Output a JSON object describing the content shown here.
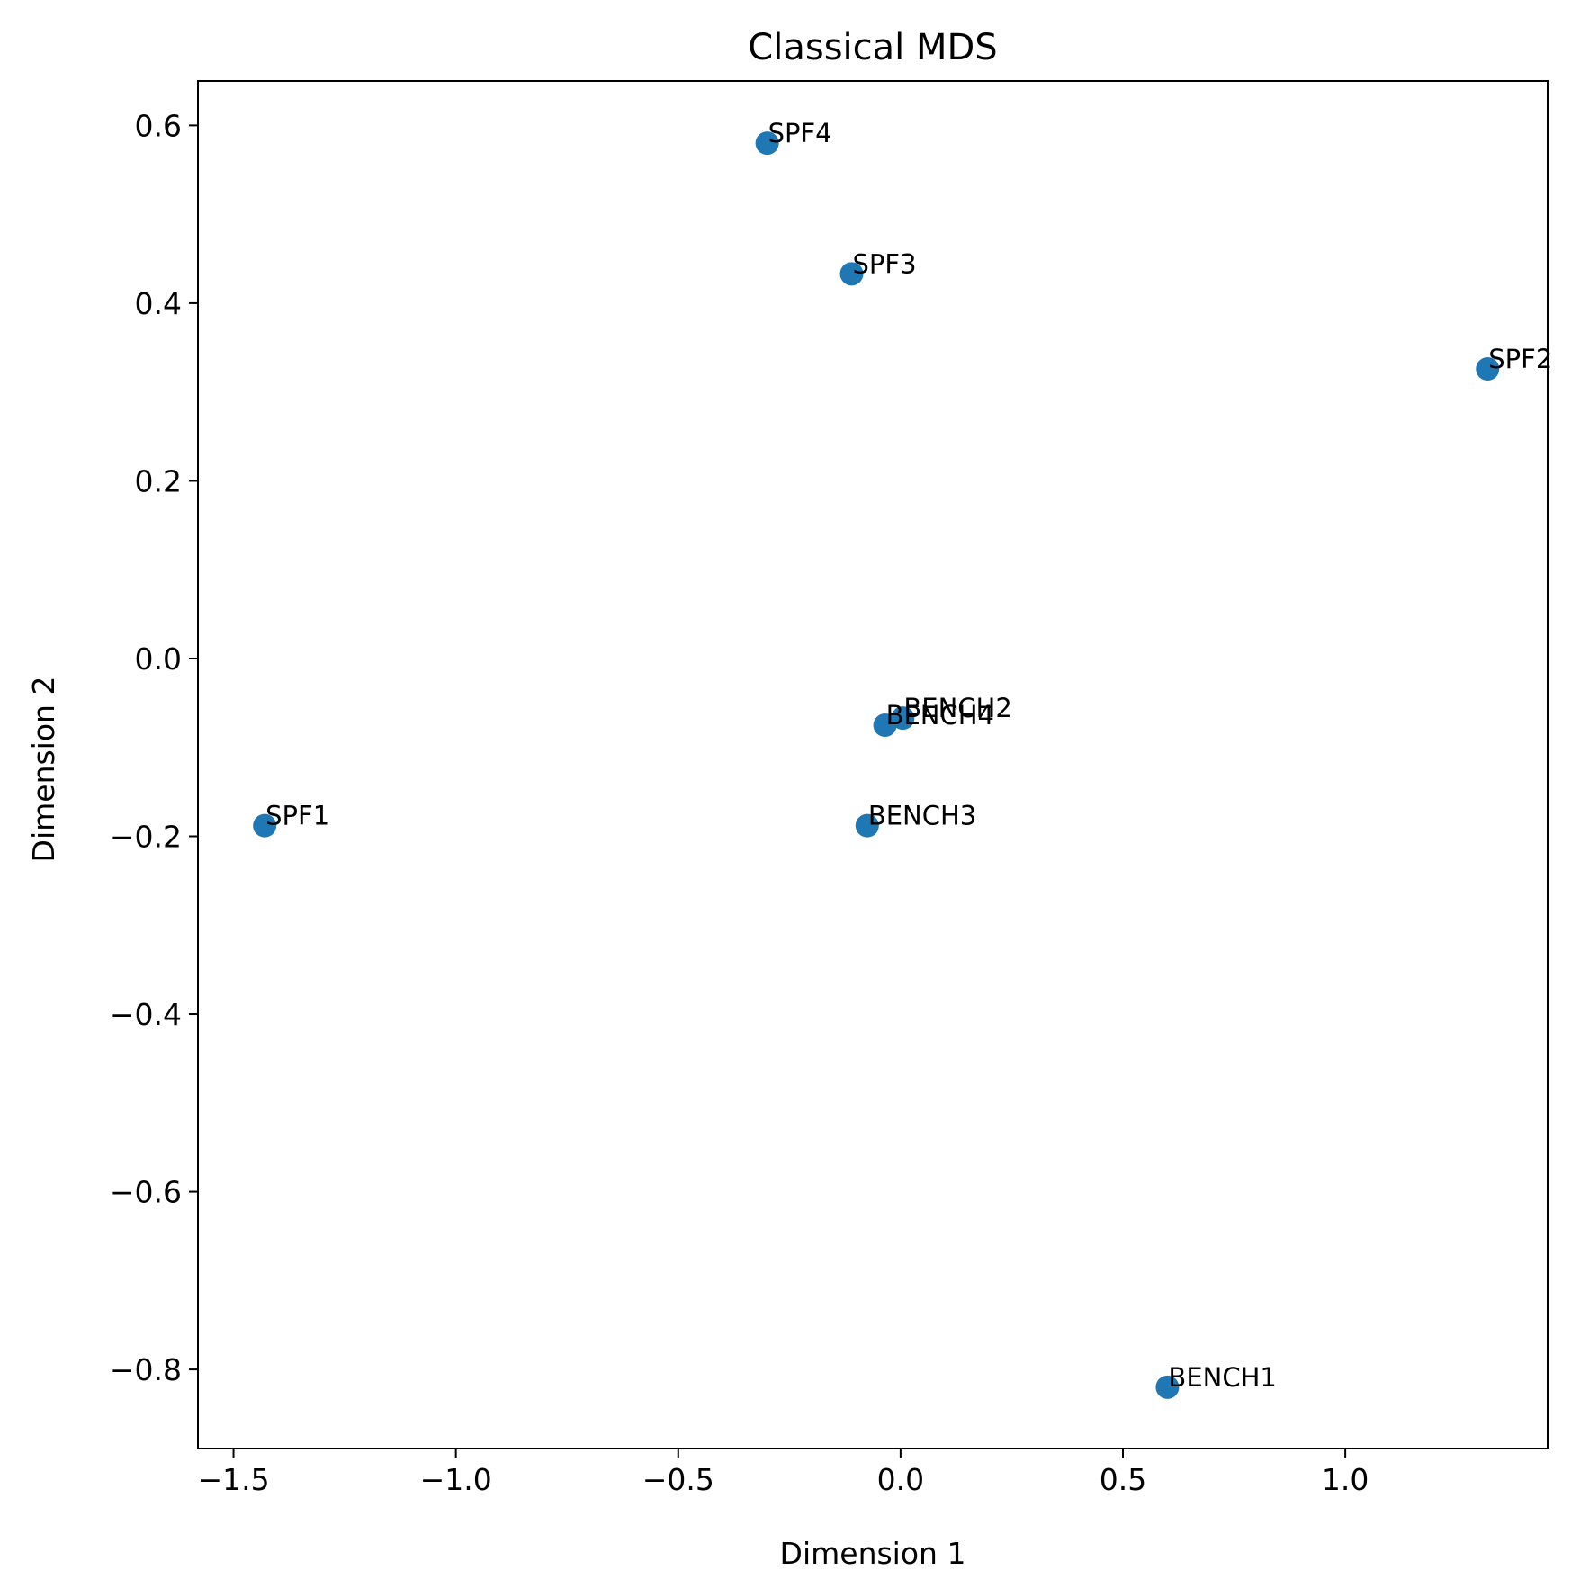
{
  "chart_data": {
    "type": "scatter",
    "title": "Classical MDS",
    "xlabel": "Dimension 1",
    "ylabel": "Dimension 2",
    "xlim": [
      -1.58,
      1.455
    ],
    "ylim": [
      -0.889,
      0.65
    ],
    "xticks": [
      -1.5,
      -1.0,
      -0.5,
      0.0,
      0.5,
      1.0
    ],
    "xtick_labels": [
      "−1.5",
      "−1.0",
      "−0.5",
      "0.0",
      "0.5",
      "1.0"
    ],
    "yticks": [
      0.6,
      0.4,
      0.2,
      0.0,
      -0.2,
      -0.4,
      -0.6,
      -0.8
    ],
    "ytick_labels": [
      "0.6",
      "0.4",
      "0.2",
      "0.0",
      "−0.2",
      "−0.4",
      "−0.6",
      "−0.8"
    ],
    "grid": false,
    "color": "#1f77b4",
    "points": [
      {
        "label": "SPF4",
        "x": -0.3,
        "y": 0.58
      },
      {
        "label": "SPF3",
        "x": -0.11,
        "y": 0.433
      },
      {
        "label": "SPF2",
        "x": 1.32,
        "y": 0.326
      },
      {
        "label": "BENCH2",
        "x": 0.005,
        "y": -0.067
      },
      {
        "label": "BENCH4",
        "x": -0.035,
        "y": -0.075
      },
      {
        "label": "SPF1",
        "x": -1.43,
        "y": -0.188
      },
      {
        "label": "BENCH3",
        "x": -0.075,
        "y": -0.188
      },
      {
        "label": "BENCH1",
        "x": 0.6,
        "y": -0.82
      }
    ]
  }
}
